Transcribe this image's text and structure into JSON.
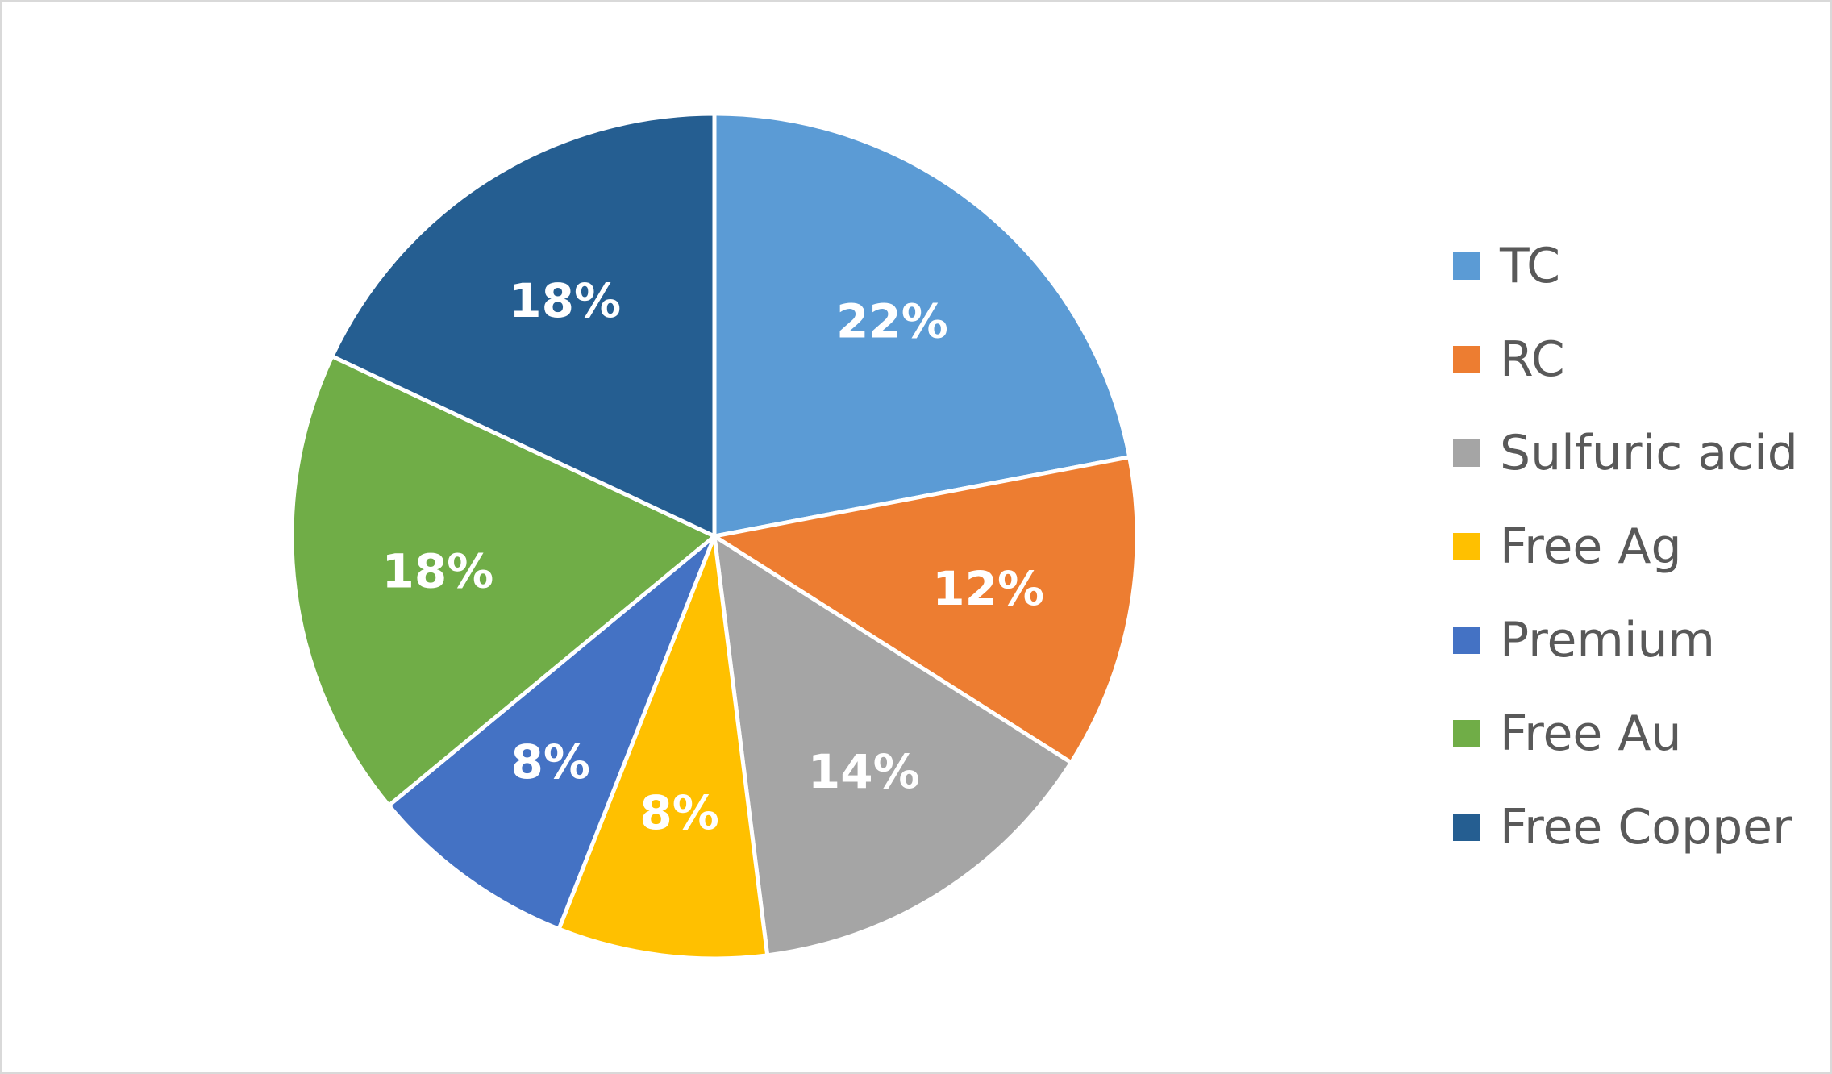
{
  "chart_data": {
    "type": "pie",
    "title": "",
    "categories": [
      "TC",
      "RC",
      "Sulfuric acid",
      "Free Ag",
      "Premium",
      "Free Au",
      "Free Copper"
    ],
    "values": [
      22,
      12,
      14,
      8,
      8,
      18,
      18
    ],
    "labels": [
      "22%",
      "12%",
      "14%",
      "8%",
      "8%",
      "18%",
      "18%"
    ],
    "colors": [
      "#5b9bd5",
      "#ed7d31",
      "#a5a5a5",
      "#ffc000",
      "#4472c4",
      "#70ad47",
      "#255e91"
    ],
    "label_color": "#ffffff",
    "start_angle_deg": 0,
    "direction": "clockwise",
    "legend_position": "right"
  }
}
